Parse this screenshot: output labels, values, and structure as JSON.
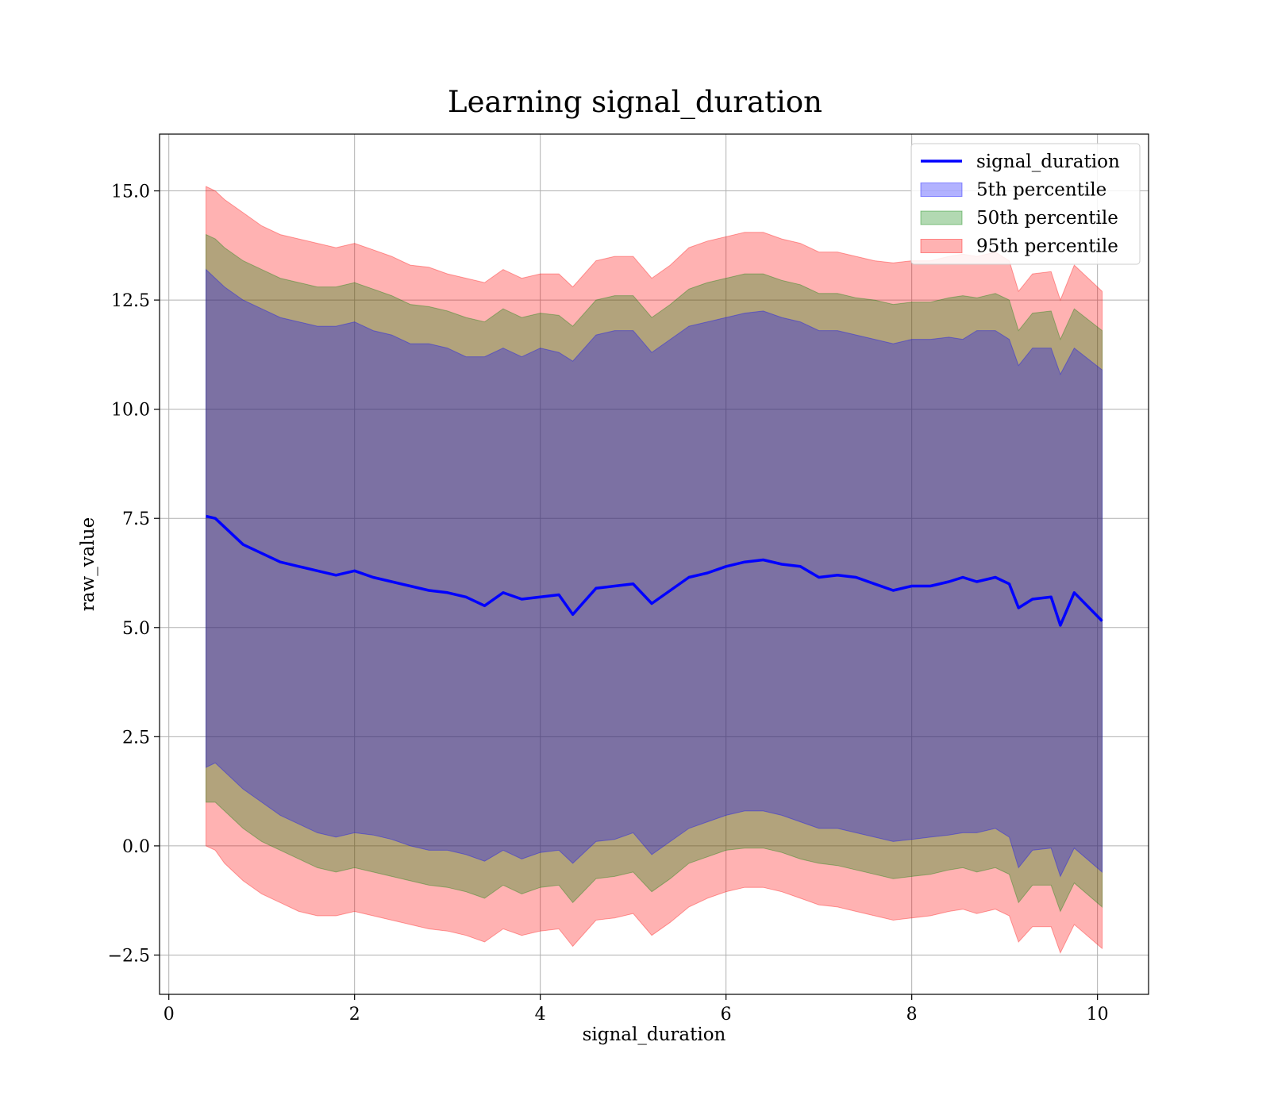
{
  "chart_data": {
    "type": "area",
    "title": "Learning signal_duration",
    "xlabel": "signal_duration",
    "ylabel": "raw_value",
    "xlim": [
      -0.1,
      10.55
    ],
    "ylim": [
      -3.4,
      16.3
    ],
    "x_ticks": [
      0,
      2,
      4,
      6,
      8,
      10
    ],
    "y_ticks": [
      -2.5,
      0.0,
      2.5,
      5.0,
      7.5,
      10.0,
      12.5,
      15.0
    ],
    "x_tick_labels": [
      "0",
      "2",
      "4",
      "6",
      "8",
      "10"
    ],
    "y_tick_labels": [
      "−2.5",
      "0.0",
      "2.5",
      "5.0",
      "7.5",
      "10.0",
      "12.5",
      "15.0"
    ],
    "grid": true,
    "legend_position": "top-right",
    "x": [
      0.4,
      0.5,
      0.6,
      0.8,
      1.0,
      1.2,
      1.4,
      1.6,
      1.8,
      2.0,
      2.2,
      2.4,
      2.6,
      2.8,
      3.0,
      3.2,
      3.4,
      3.6,
      3.8,
      4.0,
      4.2,
      4.35,
      4.6,
      4.8,
      5.0,
      5.2,
      5.4,
      5.6,
      5.8,
      6.0,
      6.2,
      6.4,
      6.6,
      6.8,
      7.0,
      7.2,
      7.4,
      7.6,
      7.8,
      8.0,
      8.2,
      8.4,
      8.55,
      8.7,
      8.9,
      9.05,
      9.15,
      9.3,
      9.5,
      9.6,
      9.75,
      10.05
    ],
    "series": [
      {
        "name": "signal_duration",
        "kind": "line",
        "color": "#0000ff",
        "values": [
          7.55,
          7.5,
          7.3,
          6.9,
          6.7,
          6.5,
          6.4,
          6.3,
          6.2,
          6.3,
          6.15,
          6.05,
          5.95,
          5.85,
          5.8,
          5.7,
          5.5,
          5.8,
          5.65,
          5.7,
          5.75,
          5.3,
          5.9,
          5.95,
          6.0,
          5.55,
          5.85,
          6.15,
          6.25,
          6.4,
          6.5,
          6.55,
          6.45,
          6.4,
          6.15,
          6.2,
          6.15,
          6.0,
          5.85,
          5.95,
          5.95,
          6.05,
          6.15,
          6.05,
          6.15,
          6.0,
          5.45,
          5.65,
          5.7,
          5.05,
          5.8,
          5.15
        ]
      },
      {
        "name": "5th percentile",
        "kind": "band",
        "color": "#0000ff",
        "opacity": 0.3,
        "upper": [
          13.2,
          13.0,
          12.8,
          12.5,
          12.3,
          12.1,
          12.0,
          11.9,
          11.9,
          12.0,
          11.8,
          11.7,
          11.5,
          11.5,
          11.4,
          11.2,
          11.2,
          11.4,
          11.2,
          11.4,
          11.3,
          11.1,
          11.7,
          11.8,
          11.8,
          11.3,
          11.6,
          11.9,
          12.0,
          12.1,
          12.2,
          12.25,
          12.1,
          12.0,
          11.8,
          11.8,
          11.7,
          11.6,
          11.5,
          11.6,
          11.6,
          11.65,
          11.6,
          11.8,
          11.8,
          11.6,
          11.0,
          11.4,
          11.4,
          10.8,
          11.4,
          10.9
        ],
        "lower": [
          1.8,
          1.9,
          1.7,
          1.3,
          1.0,
          0.7,
          0.5,
          0.3,
          0.2,
          0.3,
          0.25,
          0.15,
          0.0,
          -0.1,
          -0.1,
          -0.2,
          -0.35,
          -0.1,
          -0.3,
          -0.15,
          -0.1,
          -0.4,
          0.1,
          0.15,
          0.3,
          -0.2,
          0.1,
          0.4,
          0.55,
          0.7,
          0.8,
          0.8,
          0.7,
          0.55,
          0.4,
          0.4,
          0.3,
          0.2,
          0.1,
          0.15,
          0.2,
          0.25,
          0.3,
          0.3,
          0.4,
          0.2,
          -0.5,
          -0.1,
          -0.05,
          -0.7,
          -0.05,
          -0.6
        ]
      },
      {
        "name": "50th percentile",
        "kind": "band",
        "color": "#008000",
        "opacity": 0.3,
        "upper": [
          14.0,
          13.9,
          13.7,
          13.4,
          13.2,
          13.0,
          12.9,
          12.8,
          12.8,
          12.9,
          12.75,
          12.6,
          12.4,
          12.35,
          12.25,
          12.1,
          12.0,
          12.3,
          12.1,
          12.2,
          12.15,
          11.9,
          12.5,
          12.6,
          12.6,
          12.1,
          12.4,
          12.75,
          12.9,
          13.0,
          13.1,
          13.1,
          12.95,
          12.85,
          12.65,
          12.65,
          12.55,
          12.5,
          12.4,
          12.45,
          12.45,
          12.55,
          12.6,
          12.55,
          12.65,
          12.5,
          11.8,
          12.2,
          12.25,
          11.6,
          12.3,
          11.8
        ],
        "lower": [
          1.0,
          1.0,
          0.8,
          0.4,
          0.1,
          -0.1,
          -0.3,
          -0.5,
          -0.6,
          -0.5,
          -0.6,
          -0.7,
          -0.8,
          -0.9,
          -0.95,
          -1.05,
          -1.2,
          -0.9,
          -1.1,
          -0.95,
          -0.9,
          -1.3,
          -0.75,
          -0.7,
          -0.6,
          -1.05,
          -0.75,
          -0.4,
          -0.25,
          -0.1,
          -0.05,
          -0.05,
          -0.15,
          -0.3,
          -0.4,
          -0.45,
          -0.55,
          -0.65,
          -0.75,
          -0.7,
          -0.65,
          -0.55,
          -0.5,
          -0.6,
          -0.5,
          -0.65,
          -1.3,
          -0.9,
          -0.9,
          -1.5,
          -0.85,
          -1.4
        ]
      },
      {
        "name": "95th percentile",
        "kind": "band",
        "color": "#ff0000",
        "opacity": 0.3,
        "upper": [
          15.1,
          15.0,
          14.8,
          14.5,
          14.2,
          14.0,
          13.9,
          13.8,
          13.7,
          13.8,
          13.65,
          13.5,
          13.3,
          13.25,
          13.1,
          13.0,
          12.9,
          13.2,
          13.0,
          13.1,
          13.1,
          12.8,
          13.4,
          13.5,
          13.5,
          13.0,
          13.3,
          13.7,
          13.85,
          13.95,
          14.05,
          14.05,
          13.9,
          13.8,
          13.6,
          13.6,
          13.5,
          13.4,
          13.35,
          13.4,
          13.4,
          13.5,
          13.55,
          13.5,
          13.6,
          13.4,
          12.7,
          13.1,
          13.15,
          12.5,
          13.3,
          12.7
        ],
        "lower": [
          0.0,
          -0.1,
          -0.4,
          -0.8,
          -1.1,
          -1.3,
          -1.5,
          -1.6,
          -1.6,
          -1.5,
          -1.6,
          -1.7,
          -1.8,
          -1.9,
          -1.95,
          -2.05,
          -2.2,
          -1.9,
          -2.05,
          -1.95,
          -1.9,
          -2.3,
          -1.7,
          -1.65,
          -1.55,
          -2.05,
          -1.75,
          -1.4,
          -1.2,
          -1.05,
          -0.95,
          -0.95,
          -1.05,
          -1.2,
          -1.35,
          -1.4,
          -1.5,
          -1.6,
          -1.7,
          -1.65,
          -1.6,
          -1.5,
          -1.45,
          -1.55,
          -1.45,
          -1.6,
          -2.2,
          -1.85,
          -1.85,
          -2.45,
          -1.8,
          -2.35
        ]
      }
    ]
  }
}
